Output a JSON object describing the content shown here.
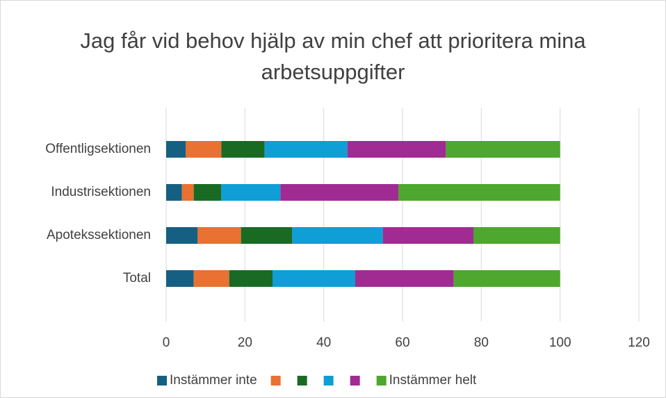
{
  "chart_data": {
    "type": "stacked-bar-horizontal",
    "title": "Jag får vid behov hjälp av min chef att prioritera mina arbetsuppgifter",
    "categories": [
      "Offentligsektionen",
      "Industrisektionen",
      "Apotekssektionen",
      "Total"
    ],
    "series": [
      {
        "name": "Instämmer inte",
        "color": "#156082",
        "values": [
          5,
          4,
          8,
          7
        ]
      },
      {
        "name": null,
        "color": "#e97132",
        "values": [
          9,
          3,
          11,
          9
        ]
      },
      {
        "name": null,
        "color": "#196b24",
        "values": [
          11,
          7,
          13,
          11
        ]
      },
      {
        "name": null,
        "color": "#0f9ed5",
        "values": [
          21,
          15,
          23,
          21
        ]
      },
      {
        "name": null,
        "color": "#a02b93",
        "values": [
          25,
          30,
          23,
          25
        ]
      },
      {
        "name": "Instämmer helt",
        "color": "#4ea72e",
        "values": [
          29,
          41,
          22,
          27
        ]
      }
    ],
    "xlim": [
      0,
      120
    ],
    "xticks": [
      0,
      20,
      40,
      60,
      80,
      100,
      120
    ],
    "grid": true,
    "legend": "bottom"
  }
}
